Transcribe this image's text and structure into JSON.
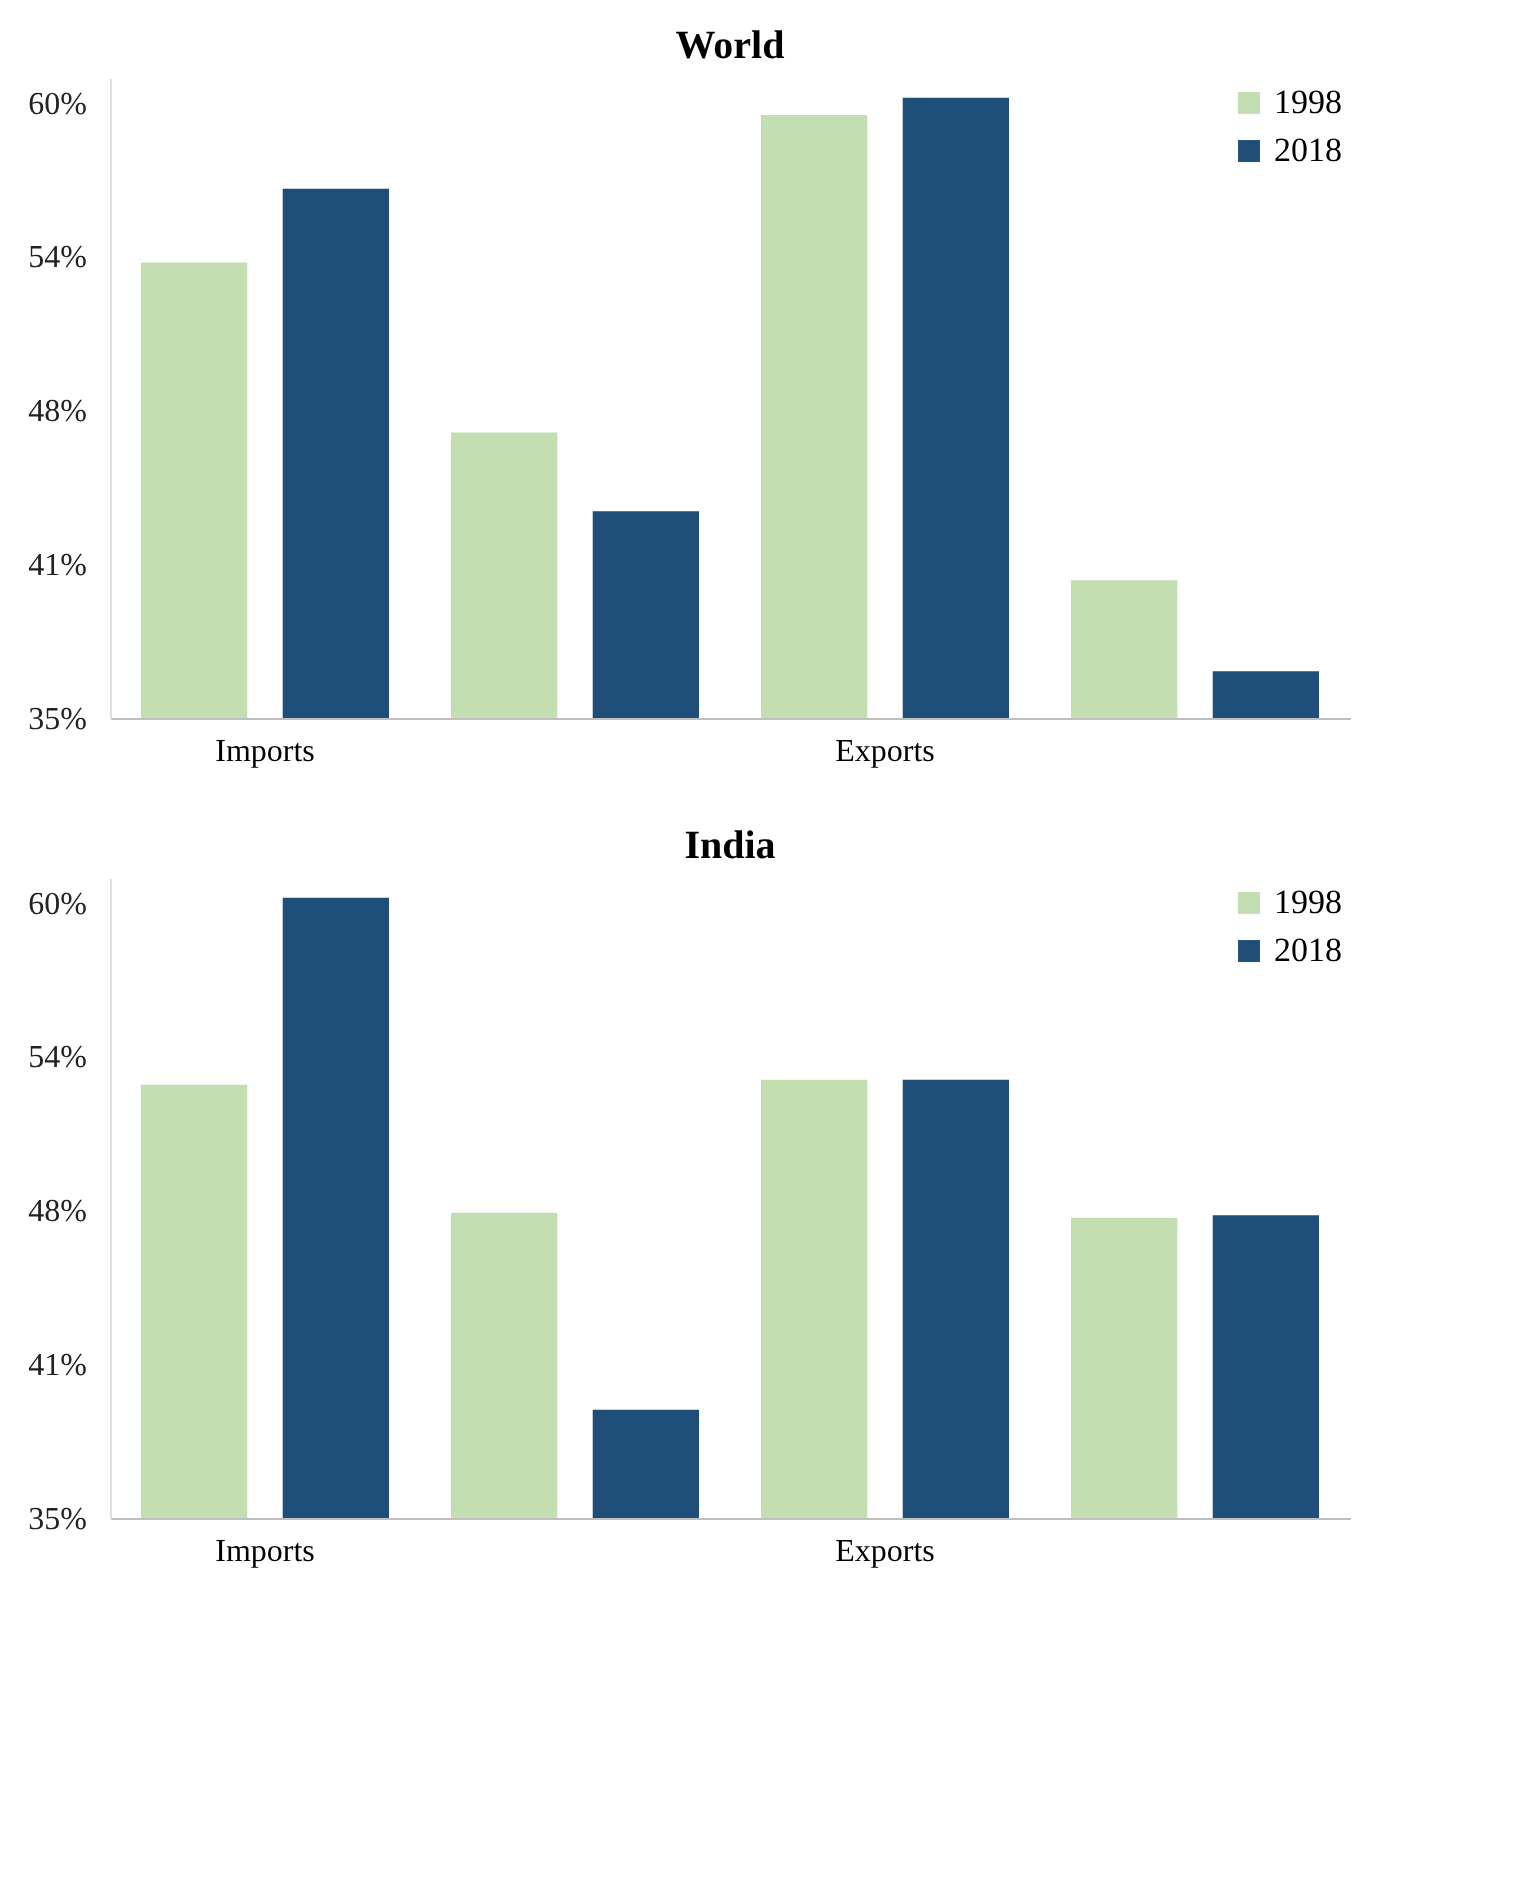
{
  "chart_data": [
    {
      "type": "bar",
      "title": "World",
      "categories": [
        "Imports",
        null,
        "Exports",
        null
      ],
      "series": [
        {
          "name": "1998",
          "color": "#c3deb1",
          "values": [
            53.5,
            46.6,
            59.5,
            40.6
          ]
        },
        {
          "name": "2018",
          "color": "#1f4e79",
          "values": [
            56.5,
            43.4,
            60.2,
            36.9
          ]
        }
      ],
      "ylim": [
        35,
        61
      ],
      "yticks": [
        {
          "value": 35,
          "label": "35%"
        },
        {
          "value": 41.25,
          "label": "41%"
        },
        {
          "value": 47.5,
          "label": "48%"
        },
        {
          "value": 53.75,
          "label": "54%"
        },
        {
          "value": 60,
          "label": "60%"
        }
      ],
      "grid": false,
      "legend": "top right"
    },
    {
      "type": "bar",
      "title": "India",
      "categories": [
        "Imports",
        null,
        "Exports",
        null
      ],
      "series": [
        {
          "name": "1998",
          "color": "#c3deb1",
          "values": [
            52.6,
            47.4,
            52.8,
            47.2
          ]
        },
        {
          "name": "2018",
          "color": "#1f4e79",
          "values": [
            60.2,
            39.4,
            52.8,
            47.3
          ]
        }
      ],
      "ylim": [
        35,
        61
      ],
      "yticks": [
        {
          "value": 35,
          "label": "35%"
        },
        {
          "value": 41.25,
          "label": "41%"
        },
        {
          "value": 47.5,
          "label": "48%"
        },
        {
          "value": 53.75,
          "label": "54%"
        },
        {
          "value": 60,
          "label": "60%"
        }
      ],
      "grid": false,
      "legend": "top right"
    }
  ]
}
